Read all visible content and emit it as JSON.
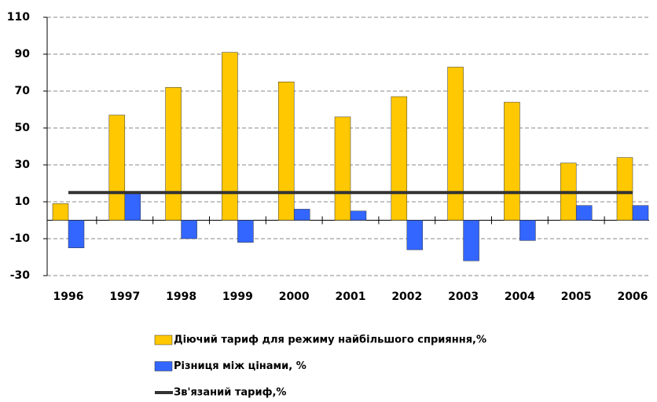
{
  "chart_data": {
    "type": "bar",
    "categories": [
      "1996",
      "1997",
      "1998",
      "1999",
      "2000",
      "2001",
      "2002",
      "2003",
      "2004",
      "2005",
      "2006"
    ],
    "series": [
      {
        "name": "Діючий тариф для режиму найбільшого сприяння,%",
        "type": "bar",
        "color": "#ffc800",
        "values": [
          9,
          57,
          72,
          91,
          75,
          56,
          67,
          83,
          64,
          31,
          34
        ]
      },
      {
        "name": "Різниця між цінами, %",
        "type": "bar",
        "color": "#3366ff",
        "values": [
          -15,
          15,
          -10,
          -12,
          6,
          5,
          -16,
          -22,
          -11,
          8,
          8
        ]
      },
      {
        "name": "Зв'язаний тариф,%",
        "type": "line",
        "color": "#333333",
        "values": [
          15,
          15,
          15,
          15,
          15,
          15,
          15,
          15,
          15,
          15,
          15
        ]
      }
    ],
    "ylim": [
      -30,
      110
    ],
    "yticks": [
      -30,
      -10,
      10,
      30,
      50,
      70,
      90,
      110
    ],
    "grid": true
  }
}
